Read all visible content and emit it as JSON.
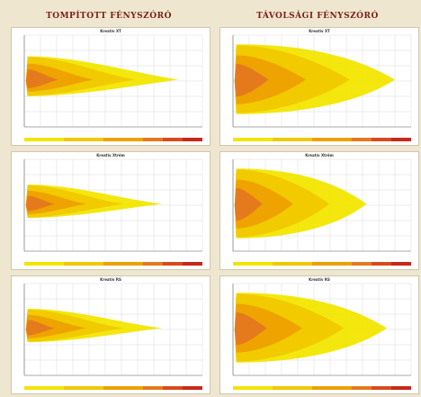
{
  "columns": [
    {
      "title": "TOMPÍTOTT FÉNYSZÓRÓ"
    },
    {
      "title": "TÁVOLSÁGI FÉNYSZÓRÓ"
    }
  ],
  "colors": {
    "background": "#efe6cf",
    "title": "#7a1e14",
    "grid": "#d9d9d9",
    "zone_low": "#f2e600",
    "zone_mid": "#f0c800",
    "zone_high": "#eda000",
    "zone_core": "#e4781e"
  },
  "chart_data": [
    {
      "type": "heatmap",
      "panel_label": "Kreatív XT",
      "beam": "low",
      "ylim": [
        -10,
        10
      ],
      "xlim": [
        0,
        220
      ],
      "reach": 190,
      "spread_near": 6,
      "spread_far": 1.5
    },
    {
      "type": "heatmap",
      "panel_label": "Kreatív Xtrém",
      "beam": "low",
      "ylim": [
        -10,
        10
      ],
      "xlim": [
        0,
        220
      ],
      "reach": 170,
      "spread_near": 5,
      "spread_far": 1
    },
    {
      "type": "heatmap",
      "panel_label": "Kreatív RS",
      "beam": "low",
      "ylim": [
        -10,
        10
      ],
      "xlim": [
        0,
        220
      ],
      "reach": 170,
      "spread_near": 5,
      "spread_far": 1
    },
    {
      "type": "heatmap",
      "panel_label": "Kreatív XT",
      "beam": "high",
      "ylim": [
        -10,
        10
      ],
      "xlim": [
        0,
        220
      ],
      "reach": 200,
      "spread_near": 8,
      "spread_far": 6
    },
    {
      "type": "heatmap",
      "panel_label": "Kreatív Xtrém",
      "beam": "high",
      "ylim": [
        -10,
        10
      ],
      "xlim": [
        0,
        220
      ],
      "reach": 165,
      "spread_near": 8,
      "spread_far": 6
    },
    {
      "type": "heatmap",
      "panel_label": "Kreatív RS",
      "beam": "high",
      "ylim": [
        -10,
        10
      ],
      "xlim": [
        0,
        220
      ],
      "reach": 190,
      "spread_near": 8,
      "spread_far": 6
    }
  ]
}
